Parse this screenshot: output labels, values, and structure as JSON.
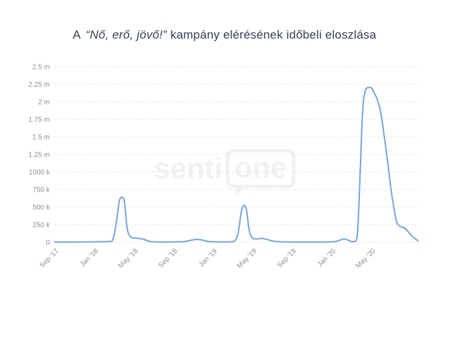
{
  "page": {
    "title": {
      "prefix": "A",
      "quote": "“Nő, erő, jövő!”",
      "rest": "kampány elérésének időbeli eloszlása",
      "full": "A “Nő, erő, jövő!” kampány elérésének időbeli eloszlása"
    },
    "watermark": {
      "left_text": "senti",
      "bubble_text": "one",
      "brand": "SentiOne"
    }
  },
  "colors": {
    "background": "#ffffff",
    "title_text": "#2e4156",
    "axis_text": "#8e8e93",
    "gridline": "#d9d9dc",
    "line": "#75a5da",
    "watermark": "#f1f1f3"
  },
  "chart_data": {
    "type": "line",
    "title": "A “Nő, erő, jövő!” kampány elérésének időbeli eloszlása",
    "xlabel": "",
    "ylabel": "",
    "legend": "none",
    "grid": "horizontal dotted lines only",
    "x_unit_note": "x = months elapsed since Sep 2017",
    "y_unit_note": "y = campaign reach, stored in thousands (250 = 250 k, 2500 = 2.5 m)",
    "xlim_months": [
      0,
      37
    ],
    "ylim_k": [
      0,
      2500
    ],
    "x_ticks": [
      {
        "month": 0,
        "label": "Sep '17"
      },
      {
        "month": 4,
        "label": "Jan '18"
      },
      {
        "month": 8,
        "label": "May '18"
      },
      {
        "month": 12,
        "label": "Sep '18"
      },
      {
        "month": 16,
        "label": "Jan '19"
      },
      {
        "month": 20,
        "label": "May '19"
      },
      {
        "month": 24,
        "label": "Sep '19"
      },
      {
        "month": 28,
        "label": "Jan '20"
      },
      {
        "month": 32,
        "label": "May '20"
      }
    ],
    "y_ticks": [
      {
        "value_k": 0,
        "label": "0"
      },
      {
        "value_k": 250,
        "label": "250 k"
      },
      {
        "value_k": 500,
        "label": "500 k"
      },
      {
        "value_k": 750,
        "label": "750 k"
      },
      {
        "value_k": 1000,
        "label": "1000 k"
      },
      {
        "value_k": 1250,
        "label": "1.25 m"
      },
      {
        "value_k": 1500,
        "label": "1.5 m"
      },
      {
        "value_k": 1750,
        "label": "1.75 m"
      },
      {
        "value_k": 2000,
        "label": "2 m"
      },
      {
        "value_k": 2250,
        "label": "2.25 m"
      },
      {
        "value_k": 2500,
        "label": "2.5 m"
      }
    ],
    "key_features": [
      "peak ~640 k around Mar–Apr 2018",
      "small bump ~40 k around Nov–Dec 2018",
      "peak ~525 k around Apr 2019",
      "small bump ~48 k around Feb 2020",
      "major peak ~2.2 m around mid-Apr to May 2020, declining through Sep 2020 with ~210 k shoulder in Aug 2020"
    ],
    "series": [
      {
        "name": "kampány elérés (campaign reach)",
        "color": "#75a5da",
        "points_month_valuek": [
          [
            0,
            3
          ],
          [
            1,
            3
          ],
          [
            2,
            3
          ],
          [
            3,
            4
          ],
          [
            4,
            5
          ],
          [
            5,
            8
          ],
          [
            5.8,
            15
          ],
          [
            6.2,
            260
          ],
          [
            6.55,
            600
          ],
          [
            6.8,
            640
          ],
          [
            7.05,
            575
          ],
          [
            7.3,
            215
          ],
          [
            7.55,
            95
          ],
          [
            7.9,
            62
          ],
          [
            8.4,
            56
          ],
          [
            9,
            40
          ],
          [
            9.6,
            12
          ],
          [
            10.2,
            5
          ],
          [
            11,
            3
          ],
          [
            12,
            4
          ],
          [
            13,
            8
          ],
          [
            13.7,
            26
          ],
          [
            14.3,
            40
          ],
          [
            14.8,
            34
          ],
          [
            15.4,
            14
          ],
          [
            16,
            6
          ],
          [
            16.8,
            4
          ],
          [
            17.6,
            5
          ],
          [
            18.1,
            10
          ],
          [
            18.5,
            110
          ],
          [
            18.85,
            430
          ],
          [
            19.1,
            525
          ],
          [
            19.35,
            480
          ],
          [
            19.65,
            170
          ],
          [
            19.95,
            62
          ],
          [
            20.4,
            45
          ],
          [
            20.9,
            55
          ],
          [
            21.4,
            40
          ],
          [
            22.1,
            15
          ],
          [
            22.8,
            6
          ],
          [
            23.5,
            4
          ],
          [
            24.5,
            3
          ],
          [
            25.5,
            3
          ],
          [
            26.5,
            3
          ],
          [
            27.5,
            4
          ],
          [
            28.3,
            8
          ],
          [
            28.8,
            28
          ],
          [
            29.2,
            48
          ],
          [
            29.6,
            32
          ],
          [
            30,
            10
          ],
          [
            30.35,
            8
          ],
          [
            30.6,
            150
          ],
          [
            30.85,
            950
          ],
          [
            31.1,
            1850
          ],
          [
            31.35,
            2140
          ],
          [
            31.65,
            2205
          ],
          [
            32,
            2200
          ],
          [
            32.3,
            2120
          ],
          [
            32.6,
            2030
          ],
          [
            32.95,
            1840
          ],
          [
            33.3,
            1500
          ],
          [
            33.6,
            1190
          ],
          [
            34,
            730
          ],
          [
            34.3,
            465
          ],
          [
            34.55,
            290
          ],
          [
            34.9,
            225
          ],
          [
            35.3,
            205
          ],
          [
            35.8,
            135
          ],
          [
            36.2,
            75
          ],
          [
            36.7,
            22
          ]
        ]
      }
    ]
  }
}
